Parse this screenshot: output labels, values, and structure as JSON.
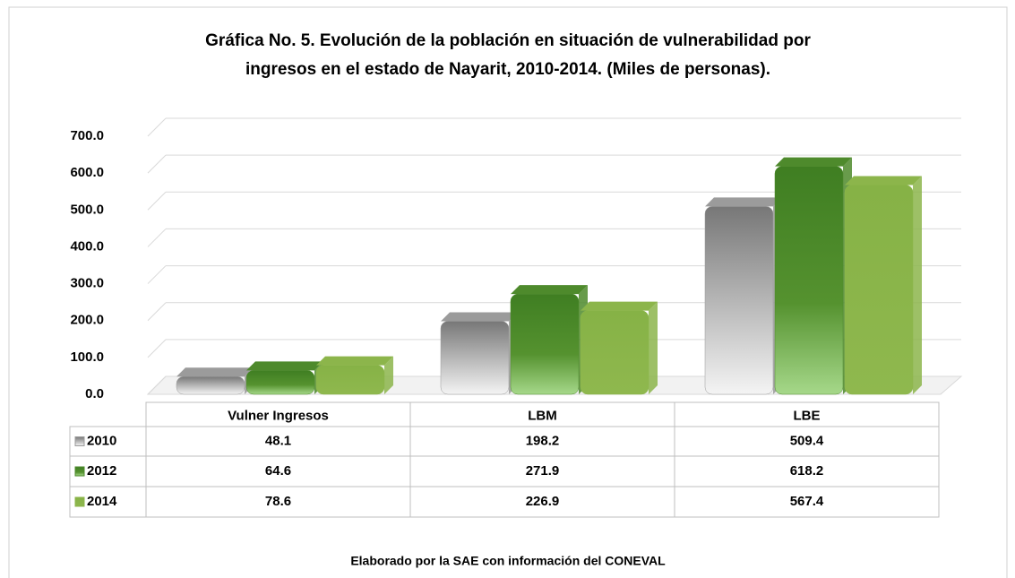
{
  "chart_data": {
    "type": "bar3d",
    "title": [
      "Gráfica No. 5. Evolución de la población en situación de vulnerabilidad por",
      "ingresos en el estado de Nayarit, 2010-2014. (Miles de personas)."
    ],
    "categories": [
      "Vulner Ingresos",
      "LBM",
      "LBE"
    ],
    "series": [
      {
        "name": "2010",
        "color": "#9b9b9b",
        "values": [
          48.1,
          198.2,
          509.4
        ]
      },
      {
        "name": "2012",
        "color": "#4e8a2c",
        "values": [
          64.6,
          271.9,
          618.2
        ]
      },
      {
        "name": "2014",
        "color": "#8cb54b",
        "values": [
          78.6,
          226.9,
          567.4
        ]
      }
    ],
    "ylim": [
      0,
      700
    ],
    "yticks": [
      {
        "value": 0,
        "label": "0.0"
      },
      {
        "value": 100,
        "label": "100.0"
      },
      {
        "value": 200,
        "label": "200.0"
      },
      {
        "value": 300,
        "label": "300.0"
      },
      {
        "value": 400,
        "label": "400.0"
      },
      {
        "value": 500,
        "label": "500.0"
      },
      {
        "value": 600,
        "label": "600.0"
      },
      {
        "value": 700,
        "label": "700.0"
      }
    ],
    "grid": true,
    "note": "Elaborado por la SAE con información del CONEVAL"
  }
}
